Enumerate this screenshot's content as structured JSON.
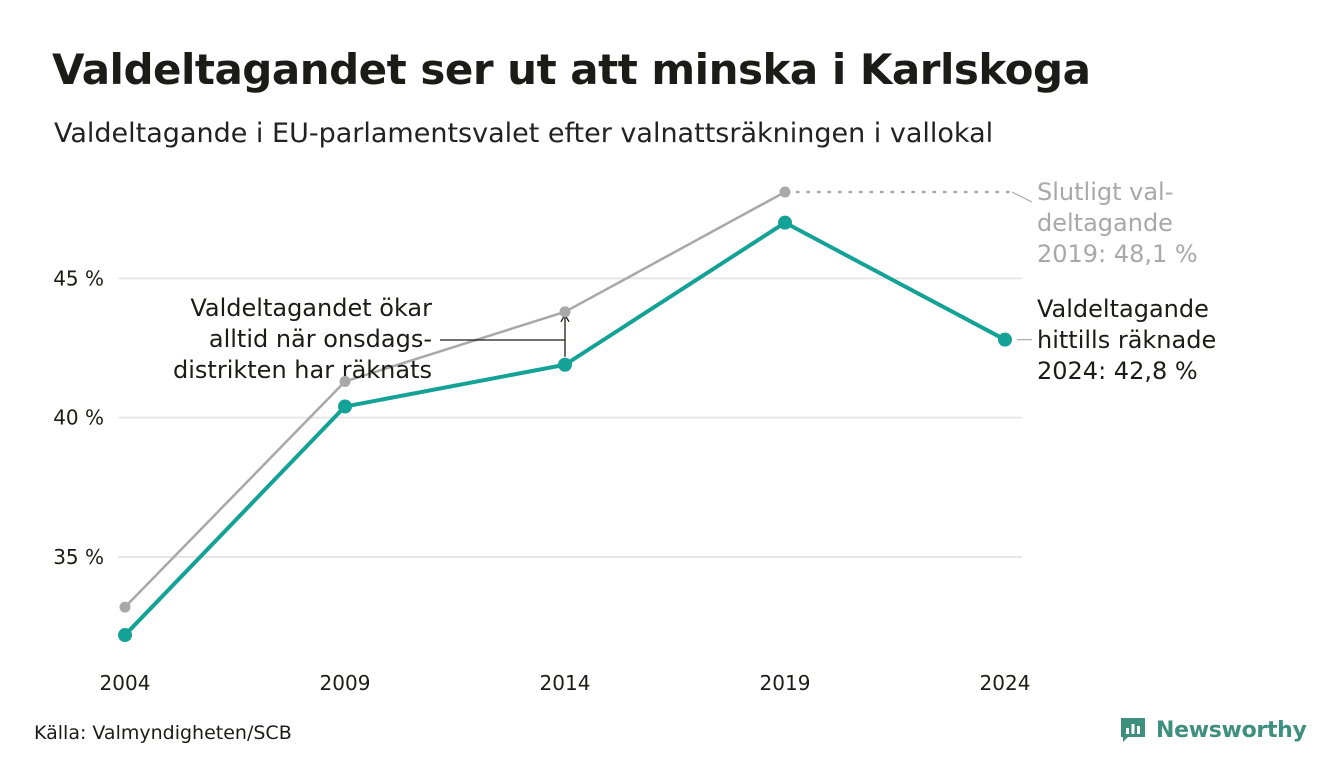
{
  "title": "Valdeltagandet ser ut att minska i Karlskoga",
  "subtitle": "Valdeltagande i EU-parlamentsvalet efter valnattsräkningen i vallokal",
  "source": "Källa: Valmyndigheten/SCB",
  "brand": "Newsworthy",
  "colors": {
    "counted": "#14a196",
    "final": "#a8a8a8",
    "grid": "#e6e6e6",
    "text": "#1b1b17",
    "brand": "#3f8f7e"
  },
  "chart_data": {
    "type": "line",
    "x": [
      "2004",
      "2009",
      "2014",
      "2019",
      "2024"
    ],
    "ylim": [
      32,
      48.5
    ],
    "yticks": [
      35,
      40,
      45
    ],
    "ytick_labels": [
      "35 %",
      "40 %",
      "45 %"
    ],
    "grid": "horizontal",
    "series": [
      {
        "key": "final",
        "values": [
          33.2,
          41.3,
          43.8,
          48.1,
          null
        ]
      },
      {
        "key": "counted",
        "values": [
          32.2,
          40.4,
          41.9,
          47.0,
          42.8
        ]
      }
    ],
    "annotations": {
      "final_label": [
        "Slutligt val-",
        "deltagande",
        "2019: 48,1 %"
      ],
      "counted_label": [
        "Valdeltagande",
        "hittills räknade",
        "2024: 42,8 %"
      ],
      "note": [
        "Valdeltagandet ökar",
        "alltid när onsdags-",
        "distrikten har räknats"
      ]
    }
  }
}
